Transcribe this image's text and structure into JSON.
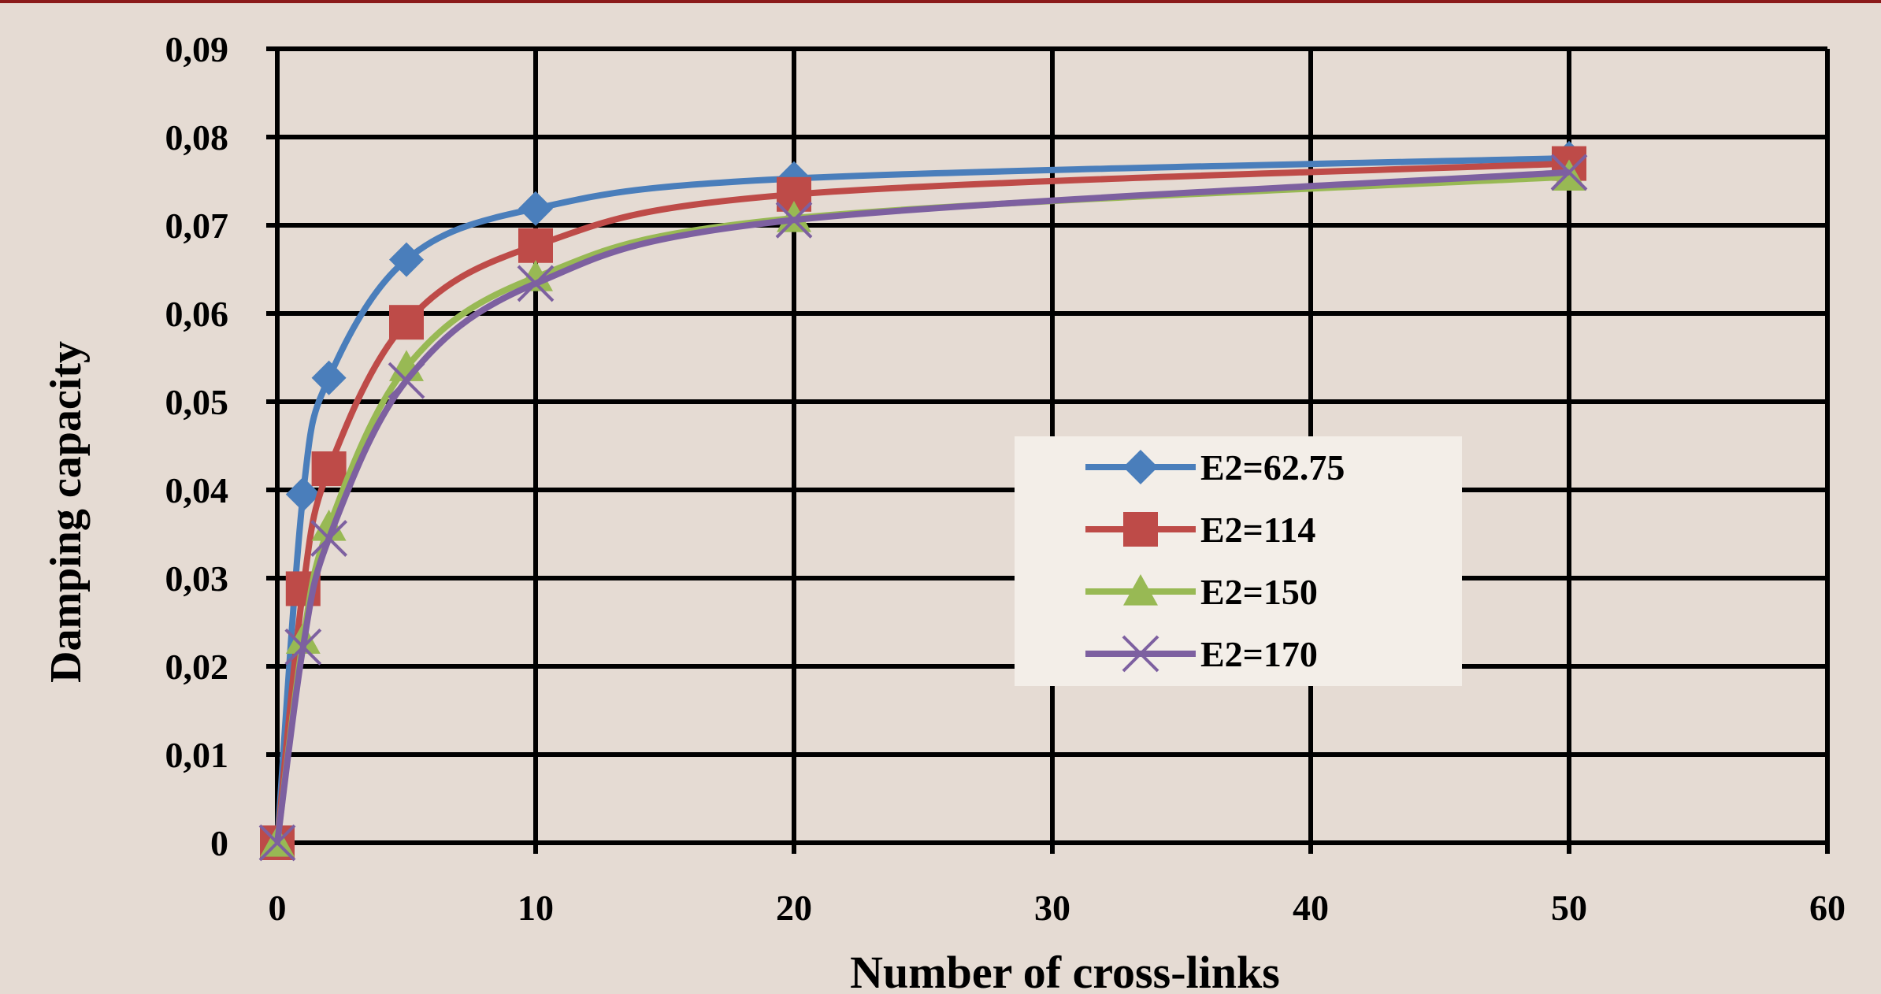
{
  "chart_data": {
    "type": "line",
    "title": "",
    "xlabel": "Number of cross-links",
    "ylabel": "Damping capacity",
    "xlim": [
      0,
      60
    ],
    "ylim": [
      0,
      0.09
    ],
    "x_ticks": [
      0,
      10,
      20,
      30,
      40,
      50,
      60
    ],
    "x_tick_labels": [
      "0",
      "10",
      "20",
      "30",
      "40",
      "50",
      "60"
    ],
    "y_ticks": [
      0,
      0.01,
      0.02,
      0.03,
      0.04,
      0.05,
      0.06,
      0.07,
      0.08,
      0.09
    ],
    "y_tick_labels": [
      "0",
      "0,01",
      "0,02",
      "0,03",
      "0,04",
      "0,05",
      "0,06",
      "0,07",
      "0,08",
      "0,09"
    ],
    "grid": true,
    "legend_position": "center-right",
    "x": [
      0,
      1,
      2,
      5,
      10,
      20,
      50
    ],
    "series": [
      {
        "name": "E2=62.75",
        "color": "#4a7ebb",
        "marker": "diamond",
        "values": [
          0,
          0.0395,
          0.0527,
          0.0661,
          0.0719,
          0.0753,
          0.0776
        ]
      },
      {
        "name": "E2=114",
        "color": "#be4b48",
        "marker": "square",
        "values": [
          0,
          0.0288,
          0.0424,
          0.059,
          0.0677,
          0.0735,
          0.077
        ]
      },
      {
        "name": "E2=150",
        "color": "#98b954",
        "marker": "triangle",
        "values": [
          0,
          0.023,
          0.0358,
          0.0539,
          0.0641,
          0.0708,
          0.0755
        ]
      },
      {
        "name": "E2=170",
        "color": "#7d60a0",
        "marker": "x",
        "values": [
          0,
          0.0222,
          0.0345,
          0.0524,
          0.0634,
          0.0706,
          0.076
        ]
      }
    ]
  },
  "frame": {
    "top_bar_color": "#8b1a1a",
    "background": "#e5dbd3",
    "legend_background": "#f3eee8"
  }
}
